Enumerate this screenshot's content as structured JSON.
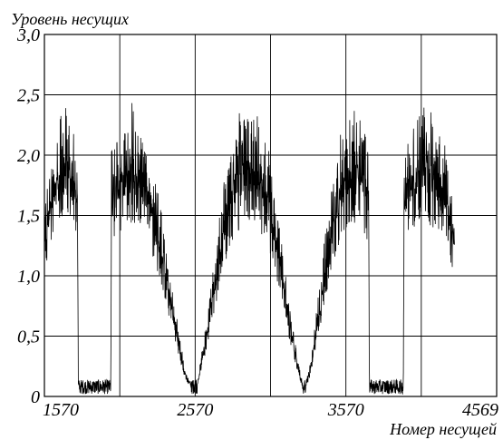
{
  "chart_data": {
    "type": "line",
    "ylabel": "Уровень несущих",
    "xlabel": "Номер несущей",
    "xlim": [
      1570,
      4569
    ],
    "ylim": [
      0,
      3.0
    ],
    "x_ticks": [
      1570,
      2570,
      3570,
      4569
    ],
    "x_tick_labels": [
      "1570",
      "2570",
      "3570",
      "4569"
    ],
    "y_ticks": [
      0,
      0.5,
      1.0,
      1.5,
      2.0,
      2.5,
      3.0
    ],
    "y_tick_labels": [
      "0",
      "0,5",
      "1,0",
      "1,5",
      "2,0",
      "2,5",
      "3,0"
    ],
    "grid": true,
    "series": [
      {
        "color": "#000000",
        "envelope_points": [
          [
            1570,
            1.25
          ],
          [
            1600,
            1.55
          ],
          [
            1640,
            1.75
          ],
          [
            1680,
            1.85
          ],
          [
            1710,
            1.9
          ],
          [
            1740,
            1.85
          ],
          [
            1770,
            1.75
          ],
          [
            1790,
            1.68
          ],
          [
            1795,
            0.05
          ],
          [
            2010,
            0.05
          ],
          [
            2015,
            1.65
          ],
          [
            2050,
            1.78
          ],
          [
            2100,
            1.88
          ],
          [
            2150,
            1.92
          ],
          [
            2200,
            1.85
          ],
          [
            2250,
            1.72
          ],
          [
            2300,
            1.5
          ],
          [
            2350,
            1.2
          ],
          [
            2400,
            0.85
          ],
          [
            2450,
            0.5
          ],
          [
            2500,
            0.2
          ],
          [
            2550,
            0.08
          ],
          [
            2575,
            0.05
          ],
          [
            2600,
            0.2
          ],
          [
            2650,
            0.55
          ],
          [
            2700,
            0.95
          ],
          [
            2750,
            1.35
          ],
          [
            2800,
            1.65
          ],
          [
            2850,
            1.82
          ],
          [
            2900,
            1.92
          ],
          [
            2950,
            1.9
          ],
          [
            3000,
            1.82
          ],
          [
            3050,
            1.65
          ],
          [
            3100,
            1.38
          ],
          [
            3150,
            1.0
          ],
          [
            3200,
            0.6
          ],
          [
            3250,
            0.25
          ],
          [
            3290,
            0.05
          ],
          [
            3330,
            0.2
          ],
          [
            3380,
            0.6
          ],
          [
            3430,
            1.05
          ],
          [
            3480,
            1.45
          ],
          [
            3530,
            1.72
          ],
          [
            3580,
            1.88
          ],
          [
            3620,
            1.92
          ],
          [
            3660,
            1.85
          ],
          [
            3700,
            1.75
          ],
          [
            3720,
            1.7
          ],
          [
            3725,
            0.05
          ],
          [
            3950,
            0.05
          ],
          [
            3955,
            1.7
          ],
          [
            4000,
            1.82
          ],
          [
            4050,
            1.9
          ],
          [
            4100,
            1.92
          ],
          [
            4150,
            1.85
          ],
          [
            4200,
            1.75
          ],
          [
            4250,
            1.55
          ],
          [
            4290,
            1.35
          ]
        ],
        "peak_max": 2.62
      }
    ]
  }
}
